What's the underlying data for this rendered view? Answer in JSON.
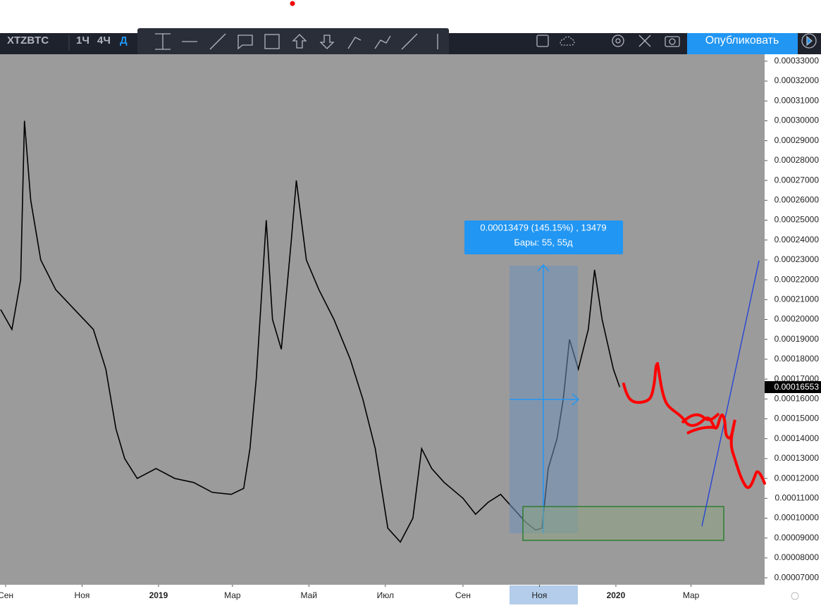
{
  "toolbar": {
    "symbol": "XTZBTC",
    "intervals": [
      "1Ч",
      "4Ч",
      "Д"
    ],
    "publish": "Опубликовать"
  },
  "measure": {
    "line1": "0.00013479 (145.15%) , 13479",
    "line2": "Бары: 55, 55д"
  },
  "current_price": "0.00016553",
  "chart_data": {
    "type": "line",
    "xlim": [
      -4.5,
      605.7
    ],
    "xticks": [
      {
        "value": 0,
        "label": "Сен"
      },
      {
        "value": 61,
        "label": "Ноя"
      },
      {
        "value": 122,
        "label": "2019"
      },
      {
        "value": 181,
        "label": "Мар"
      },
      {
        "value": 242,
        "label": "Май"
      },
      {
        "value": 303,
        "label": "Июл"
      },
      {
        "value": 365,
        "label": "Сен"
      },
      {
        "value": 426,
        "label": "Ноя"
      },
      {
        "value": 487,
        "label": "2020"
      },
      {
        "value": 547,
        "label": "Мар"
      }
    ],
    "ylim": [
      6.65e-05,
      0.0003335
    ],
    "yticks": [
      {
        "value": 0.00033,
        "label": "0.00033000"
      },
      {
        "value": 0.00032,
        "label": "0.00032000"
      },
      {
        "value": 0.00031,
        "label": "0.00031000"
      },
      {
        "value": 0.0003,
        "label": "0.00030000"
      },
      {
        "value": 0.00029,
        "label": "0.00029000"
      },
      {
        "value": 0.00028,
        "label": "0.00028000"
      },
      {
        "value": 0.00027,
        "label": "0.00027000"
      },
      {
        "value": 0.00026,
        "label": "0.00026000"
      },
      {
        "value": 0.00025,
        "label": "0.00025000"
      },
      {
        "value": 0.00024,
        "label": "0.00024000"
      },
      {
        "value": 0.00023,
        "label": "0.00023000"
      },
      {
        "value": 0.00022,
        "label": "0.00022000"
      },
      {
        "value": 0.00021,
        "label": "0.00021000"
      },
      {
        "value": 0.0002,
        "label": "0.00020000"
      },
      {
        "value": 0.00019,
        "label": "0.00019000"
      },
      {
        "value": 0.00018,
        "label": "0.00018000"
      },
      {
        "value": 0.00017,
        "label": "0.00017000"
      },
      {
        "value": 0.00016,
        "label": "0.00016000"
      },
      {
        "value": 0.00015,
        "label": "0.00015000"
      },
      {
        "value": 0.00014,
        "label": "0.00014000"
      },
      {
        "value": 0.00013,
        "label": "0.00013000"
      },
      {
        "value": 0.00012,
        "label": "0.00012000"
      },
      {
        "value": 0.00011,
        "label": "0.00011000"
      },
      {
        "value": 0.0001,
        "label": "0.00010000"
      },
      {
        "value": 9e-05,
        "label": "0.00009000"
      },
      {
        "value": 8e-05,
        "label": "0.00008000"
      },
      {
        "value": 7e-05,
        "label": "0.00007000"
      }
    ],
    "x": [
      -4,
      5,
      12,
      15,
      20,
      28,
      40,
      55,
      70,
      80,
      88,
      95,
      105,
      120,
      135,
      150,
      165,
      180,
      190,
      195,
      200,
      205,
      208,
      213,
      220,
      228,
      232,
      240,
      250,
      262,
      275,
      285,
      295,
      305,
      315,
      325,
      332,
      340,
      350,
      365,
      375,
      385,
      395,
      405,
      415,
      423,
      428,
      433,
      440,
      445,
      450,
      457,
      465,
      470,
      476,
      485,
      490
    ],
    "series": [
      {
        "color": "#000000",
        "values": [
          0.000205,
          0.000195,
          0.00022,
          0.0003,
          0.00026,
          0.00023,
          0.000215,
          0.000205,
          0.000195,
          0.000175,
          0.000145,
          0.00013,
          0.00012,
          0.000125,
          0.00012,
          0.000118,
          0.000113,
          0.000112,
          0.000115,
          0.000135,
          0.00017,
          0.00022,
          0.00025,
          0.0002,
          0.000185,
          0.00024,
          0.00027,
          0.00023,
          0.000215,
          0.0002,
          0.00018,
          0.00016,
          0.000135,
          9.5e-05,
          8.8e-05,
          0.0001,
          0.000135,
          0.000125,
          0.000118,
          0.00011,
          0.000102,
          0.000108,
          0.000112,
          0.000105,
          9.8e-05,
          9.4e-05,
          9.5e-05,
          0.000125,
          0.00014,
          0.00016,
          0.00019,
          0.000175,
          0.000195,
          0.000225,
          0.0002,
          0.000175,
          0.000166
        ]
      }
    ]
  }
}
